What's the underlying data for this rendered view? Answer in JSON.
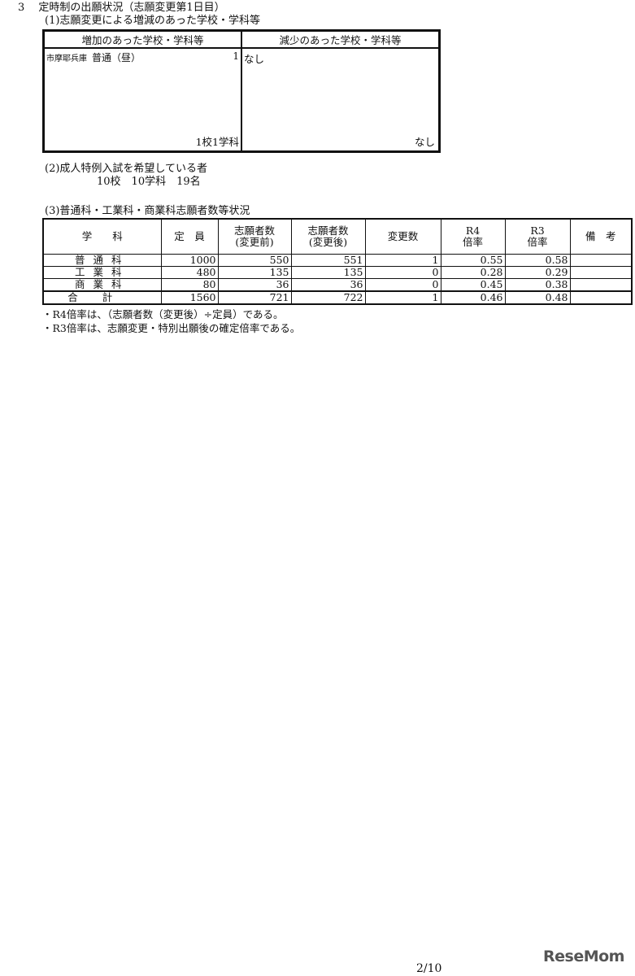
{
  "section_title": "3　 定時制の出願状況（志願変更第1日目）",
  "part1": {
    "title": "(1)志願変更による増減のあった学校・学科等",
    "headers": [
      "増加のあった学校・学科等",
      "減少のあった学校・学科等"
    ],
    "increase": {
      "school": "市摩耶兵庫",
      "course": "普通（昼）",
      "count": "1",
      "summary": "1校1学科"
    },
    "decrease": {
      "entry": "なし",
      "summary": "なし"
    }
  },
  "part2": {
    "title": "(2)成人特例入試を希望している者",
    "summary": "10校　10学科　19名"
  },
  "part3": {
    "title": "(3)普通科・工業科・商業科志願者数等状況",
    "headers": [
      "学　　科",
      "定　員",
      "志願者数\n(変更前)",
      "志願者数\n(変更後)",
      "変更数",
      "R4\n倍率",
      "R3\n倍率",
      "備　考"
    ],
    "rows": [
      [
        "普通科",
        "1000",
        "550",
        "551",
        "1",
        "0.55",
        "0.58",
        ""
      ],
      [
        "工業科",
        "480",
        "135",
        "135",
        "0",
        "0.28",
        "0.29",
        ""
      ],
      [
        "商業科",
        "80",
        "36",
        "36",
        "0",
        "0.45",
        "0.38",
        ""
      ],
      [
        "合計",
        "1560",
        "721",
        "722",
        "1",
        "0.46",
        "0.48",
        ""
      ]
    ],
    "notes": [
      "・R4倍率は、（志願者数（変更後）÷定員）である。",
      "・R3倍率は、志願変更・特別出願後の確定倍率である。"
    ]
  },
  "page_number": "2/10",
  "logo_text": "ReseMom"
}
